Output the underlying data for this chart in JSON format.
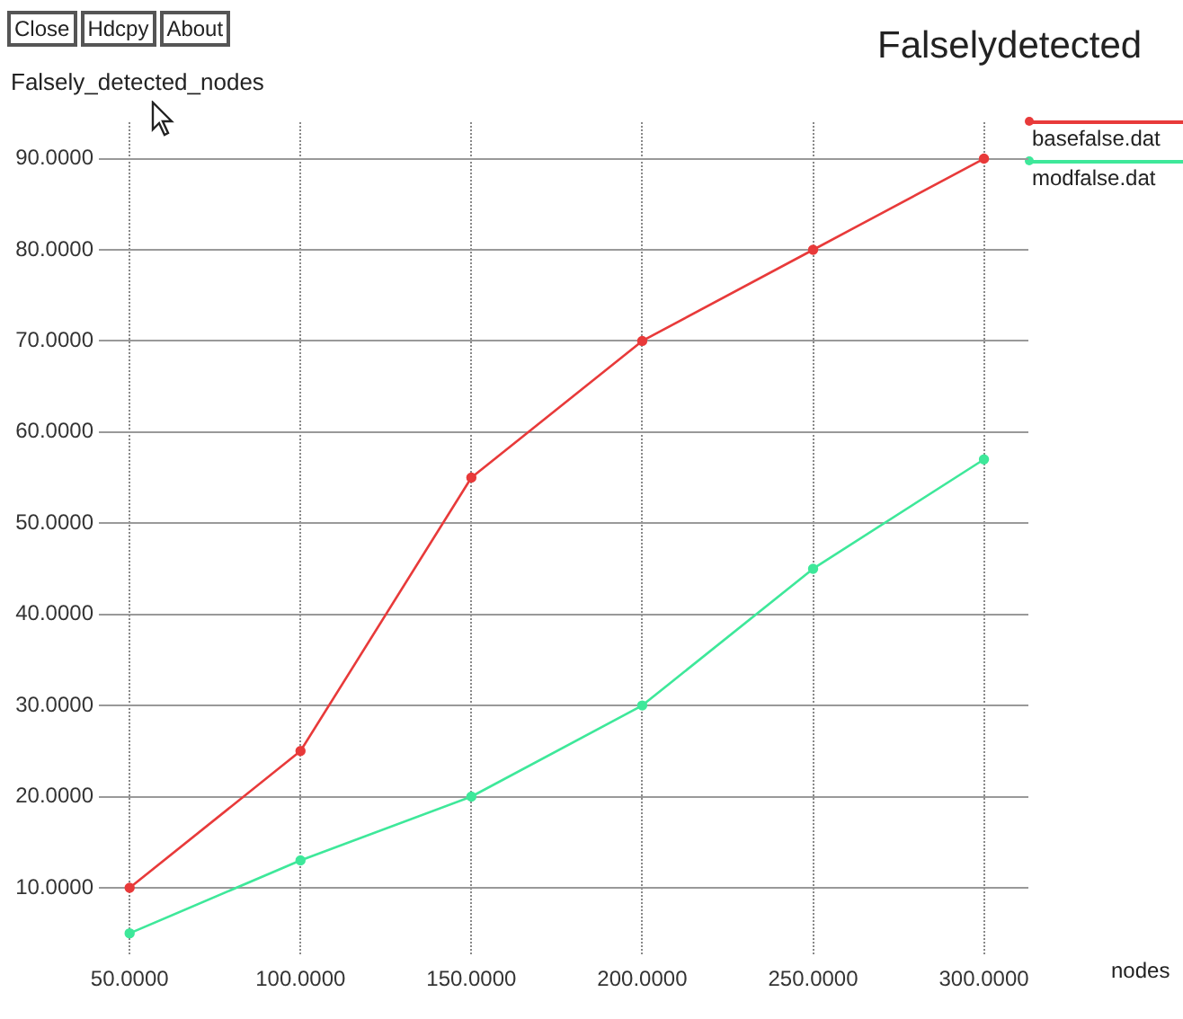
{
  "chart_data": {
    "type": "line",
    "title": "Falselydetected",
    "xlabel": "nodes",
    "ylabel": "Falsely_detected_nodes",
    "annotations": [
      "Close",
      "Hdcpy",
      "About"
    ],
    "x": [
      50,
      100,
      150,
      200,
      250,
      300
    ],
    "series": [
      {
        "name": "basefalse.dat",
        "color": "#e83a3a",
        "values": [
          10,
          25,
          55,
          70,
          80,
          90
        ]
      },
      {
        "name": "modfalse.dat",
        "color": "#3ee89a",
        "values": [
          5,
          13,
          20,
          30,
          45,
          57
        ]
      }
    ],
    "xlim": [
      41,
      313
    ],
    "ylim": [
      2.5,
      94
    ],
    "xticks": [
      {
        "value": 50,
        "label": "50.0000"
      },
      {
        "value": 100,
        "label": "100.0000"
      },
      {
        "value": 150,
        "label": "150.0000"
      },
      {
        "value": 200,
        "label": "200.0000"
      },
      {
        "value": 250,
        "label": "250.0000"
      },
      {
        "value": 300,
        "label": "300.0000"
      }
    ],
    "yticks": [
      {
        "value": 10,
        "label": "10.0000"
      },
      {
        "value": 20,
        "label": "20.0000"
      },
      {
        "value": 30,
        "label": "30.0000"
      },
      {
        "value": 40,
        "label": "40.0000"
      },
      {
        "value": 50,
        "label": "50.0000"
      },
      {
        "value": 60,
        "label": "60.0000"
      },
      {
        "value": 70,
        "label": "70.0000"
      },
      {
        "value": 80,
        "label": "80.0000"
      },
      {
        "value": 90,
        "label": "90.0000"
      }
    ],
    "grid": true,
    "legend": "top right",
    "marker": "circle",
    "line_style": "solid"
  }
}
